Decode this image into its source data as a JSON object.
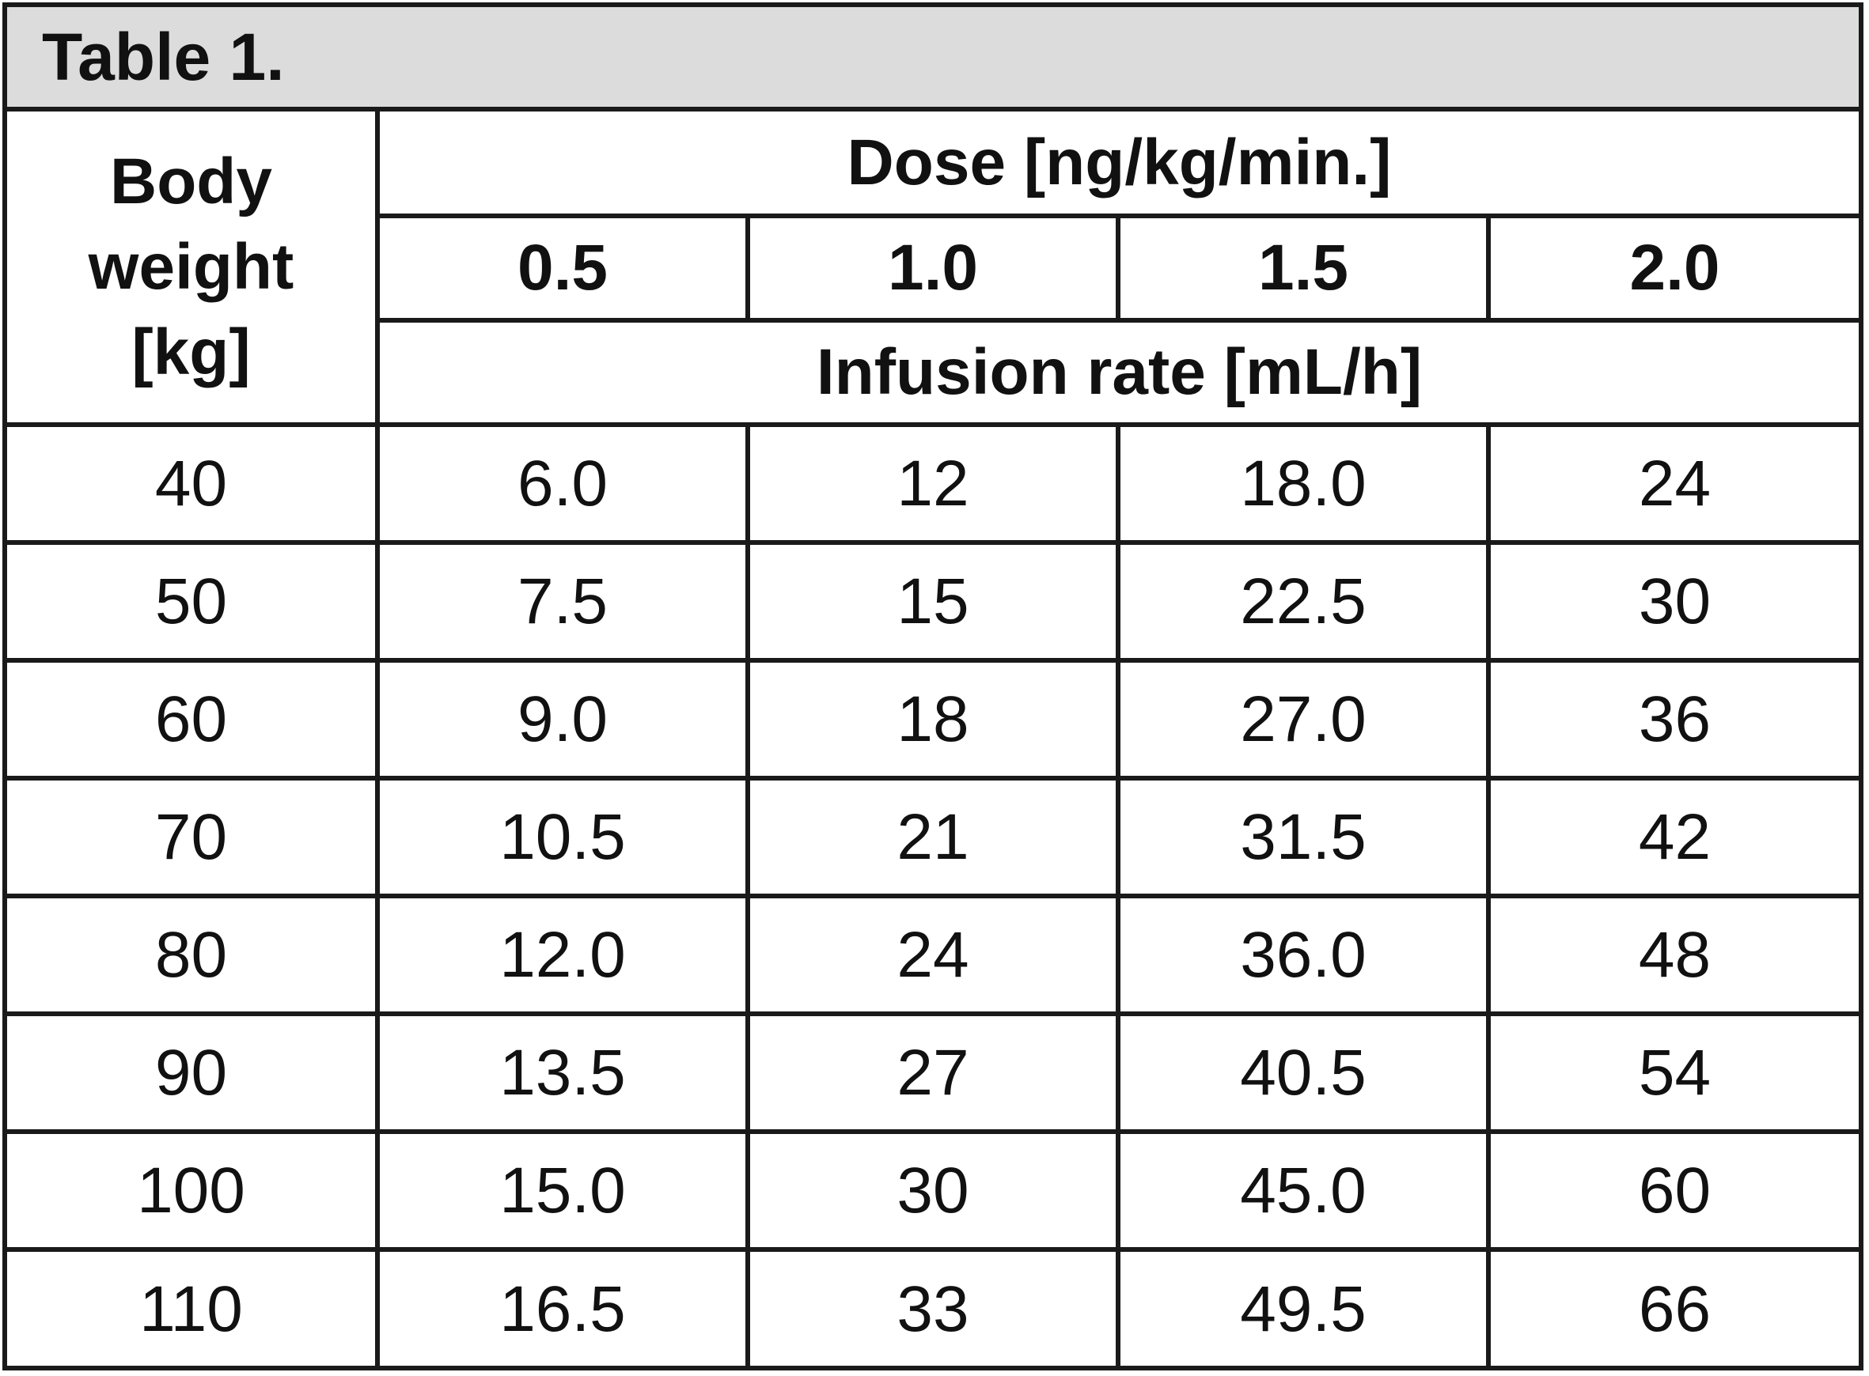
{
  "title": "Table 1.",
  "header": {
    "body_weight_lines": [
      "Body",
      "weight",
      "[kg]"
    ],
    "dose_label": "Dose [ng/kg/min.]",
    "doses": [
      "0.5",
      "1.0",
      "1.5",
      "2.0"
    ],
    "infusion_label": "Infusion rate [mL/h]"
  },
  "rows": [
    {
      "weight": "40",
      "values": [
        "6.0",
        "12",
        "18.0",
        "24"
      ]
    },
    {
      "weight": "50",
      "values": [
        "7.5",
        "15",
        "22.5",
        "30"
      ]
    },
    {
      "weight": "60",
      "values": [
        "9.0",
        "18",
        "27.0",
        "36"
      ]
    },
    {
      "weight": "70",
      "values": [
        "10.5",
        "21",
        "31.5",
        "42"
      ]
    },
    {
      "weight": "80",
      "values": [
        "12.0",
        "24",
        "36.0",
        "48"
      ]
    },
    {
      "weight": "90",
      "values": [
        "13.5",
        "27",
        "40.5",
        "54"
      ]
    },
    {
      "weight": "100",
      "values": [
        "15.0",
        "30",
        "45.0",
        "60"
      ]
    },
    {
      "weight": "110",
      "values": [
        "16.5",
        "33",
        "49.5",
        "66"
      ]
    }
  ]
}
